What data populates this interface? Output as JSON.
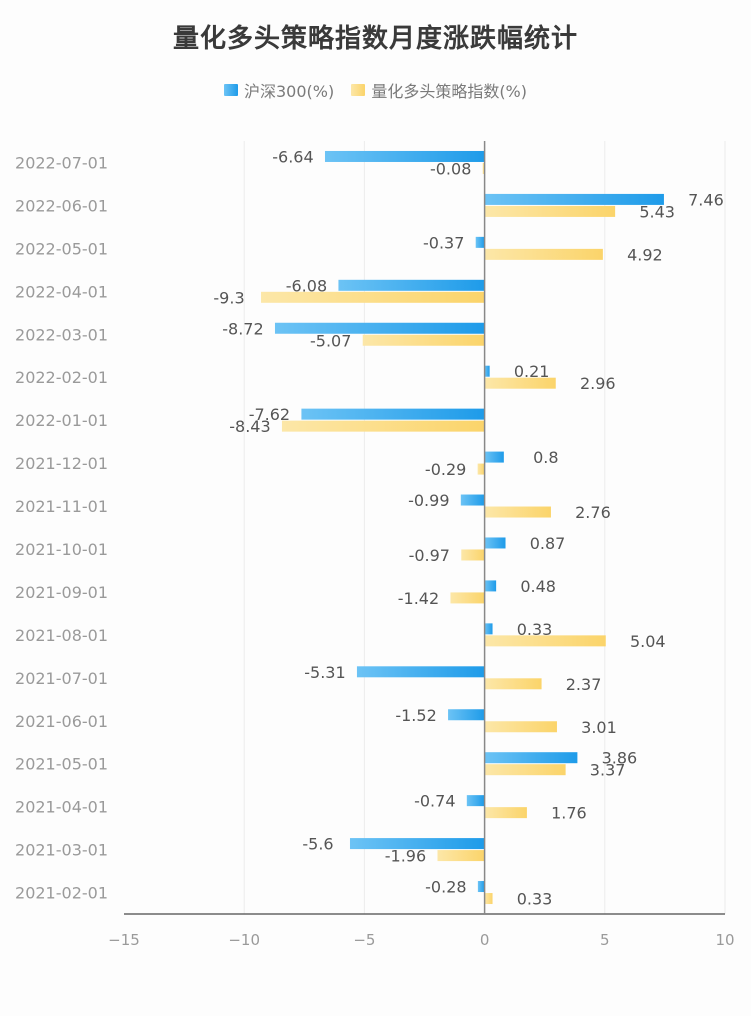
{
  "chart_data": {
    "type": "bar",
    "orientation": "horizontal",
    "title": "量化多头策略指数月度涨跌幅统计",
    "categories": [
      "2022-07-01",
      "2022-06-01",
      "2022-05-01",
      "2022-04-01",
      "2022-03-01",
      "2022-02-01",
      "2022-01-01",
      "2021-12-01",
      "2021-11-01",
      "2021-10-01",
      "2021-09-01",
      "2021-08-01",
      "2021-07-01",
      "2021-06-01",
      "2021-05-01",
      "2021-04-01",
      "2021-03-01",
      "2021-02-01"
    ],
    "series": [
      {
        "name": "沪深300(%)",
        "color": "#1e9be9",
        "values": [
          -6.64,
          7.46,
          -0.37,
          -6.08,
          -8.72,
          0.21,
          -7.62,
          0.8,
          -0.99,
          0.87,
          0.48,
          0.33,
          -5.31,
          -1.52,
          3.86,
          -0.74,
          -5.6,
          -0.28
        ]
      },
      {
        "name": "量化多头策略指数(%)",
        "color": "#fbd46a",
        "values": [
          -0.08,
          5.43,
          4.92,
          -9.3,
          -5.07,
          2.96,
          -8.43,
          -0.29,
          2.76,
          -0.97,
          -1.42,
          5.04,
          2.37,
          3.01,
          3.37,
          1.76,
          -1.96,
          0.33
        ]
      }
    ],
    "xlim": [
      -15,
      10
    ],
    "xticks": [
      -15,
      -10,
      -5,
      0,
      5,
      10
    ],
    "xtick_labels": [
      "−15",
      "−10",
      "−5",
      "0",
      "5",
      "10"
    ],
    "grid": true,
    "legend_position": "top-center"
  }
}
